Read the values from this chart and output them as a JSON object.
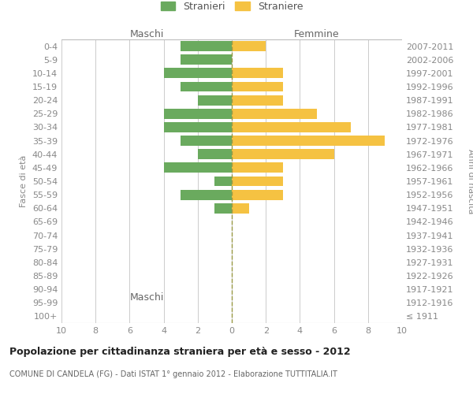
{
  "age_groups": [
    "100+",
    "95-99",
    "90-94",
    "85-89",
    "80-84",
    "75-79",
    "70-74",
    "65-69",
    "60-64",
    "55-59",
    "50-54",
    "45-49",
    "40-44",
    "35-39",
    "30-34",
    "25-29",
    "20-24",
    "15-19",
    "10-14",
    "5-9",
    "0-4"
  ],
  "birth_years": [
    "≤ 1911",
    "1912-1916",
    "1917-1921",
    "1922-1926",
    "1927-1931",
    "1932-1936",
    "1937-1941",
    "1942-1946",
    "1947-1951",
    "1952-1956",
    "1957-1961",
    "1962-1966",
    "1967-1971",
    "1972-1976",
    "1977-1981",
    "1982-1986",
    "1987-1991",
    "1992-1996",
    "1997-2001",
    "2002-2006",
    "2007-2011"
  ],
  "males": [
    0,
    0,
    0,
    0,
    0,
    0,
    0,
    0,
    1,
    3,
    1,
    4,
    2,
    3,
    4,
    4,
    2,
    3,
    4,
    3,
    3
  ],
  "females": [
    0,
    0,
    0,
    0,
    0,
    0,
    0,
    0,
    1,
    3,
    3,
    3,
    6,
    9,
    7,
    5,
    3,
    3,
    3,
    0,
    2
  ],
  "male_color": "#6aaa5e",
  "female_color": "#f5c242",
  "title": "Popolazione per cittadinanza straniera per età e sesso - 2012",
  "subtitle": "COMUNE DI CANDELA (FG) - Dati ISTAT 1° gennaio 2012 - Elaborazione TUTTITALIA.IT",
  "ylabel_left": "Fasce di età",
  "ylabel_right": "Anni di nascita",
  "legend_male": "Stranieri",
  "legend_female": "Straniere",
  "xlim": 10,
  "background_color": "#ffffff",
  "grid_color": "#cccccc",
  "maschi_label": "Maschi",
  "femmine_label": "Femmine",
  "dashed_line_color": "#999944",
  "xticks": [
    -10,
    -8,
    -6,
    -4,
    -2,
    0,
    2,
    4,
    6,
    8,
    10
  ],
  "tick_fontsize": 8,
  "label_fontsize": 8,
  "title_fontsize": 9,
  "subtitle_fontsize": 7
}
